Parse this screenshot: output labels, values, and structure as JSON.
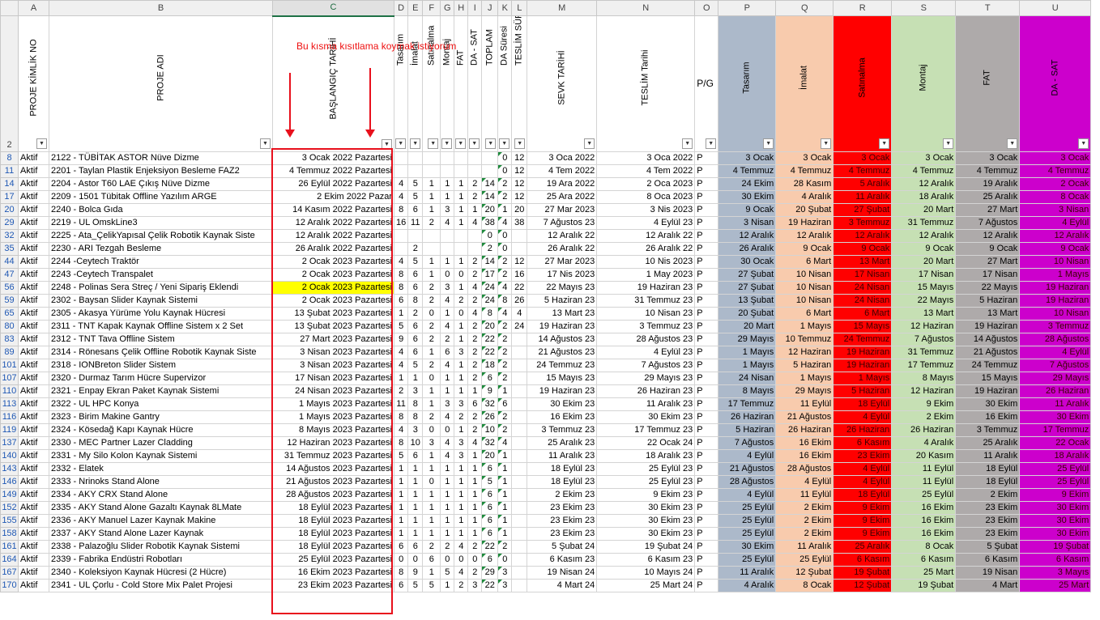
{
  "columns": [
    {
      "id": "rn",
      "letter": "",
      "w": 22
    },
    {
      "id": "A",
      "letter": "A",
      "w": 38
    },
    {
      "id": "B",
      "letter": "B",
      "w": 276
    },
    {
      "id": "C",
      "letter": "C",
      "w": 150
    },
    {
      "id": "D",
      "letter": "D",
      "w": 17
    },
    {
      "id": "E",
      "letter": "E",
      "w": 18
    },
    {
      "id": "F",
      "letter": "F",
      "w": 22
    },
    {
      "id": "G",
      "letter": "G",
      "w": 17
    },
    {
      "id": "H",
      "letter": "H",
      "w": 17
    },
    {
      "id": "I",
      "letter": "I",
      "w": 17
    },
    {
      "id": "J",
      "letter": "J",
      "w": 20
    },
    {
      "id": "K",
      "letter": "K",
      "w": 17
    },
    {
      "id": "L",
      "letter": "L",
      "w": 19
    },
    {
      "id": "M",
      "letter": "M",
      "w": 86
    },
    {
      "id": "N",
      "letter": "N",
      "w": 121
    },
    {
      "id": "O",
      "letter": "O",
      "w": 29
    },
    {
      "id": "P",
      "letter": "P",
      "w": 71
    },
    {
      "id": "Q",
      "letter": "Q",
      "w": 71
    },
    {
      "id": "R",
      "letter": "R",
      "w": 72
    },
    {
      "id": "S",
      "letter": "S",
      "w": 79
    },
    {
      "id": "T",
      "letter": "T",
      "w": 79
    },
    {
      "id": "U",
      "letter": "U",
      "w": 88
    }
  ],
  "header_row_number": "2",
  "headers": {
    "A": "PROJE KİMLİK NO",
    "B": "PROJE ADI",
    "C": "BAŞLANGIÇ TARİHİ",
    "D": "Tasarım",
    "E": "İmalat",
    "F": "Satınalma",
    "G": "Montaj",
    "H": "FAT",
    "I": "DA - SAT",
    "J": "TOPLAM",
    "K": "DA Süresi",
    "L": "TESLİM SÜRESİ",
    "M": "SEVK TARİHİ",
    "N": "TESLİM Tarihi",
    "O": "P/G",
    "P": "Tasarım",
    "Q": "İmalat",
    "R": "Satınalma",
    "S": "Montaj",
    "T": "FAT",
    "U": "DA - SAT"
  },
  "header_colors": {
    "P": "#acb9ca",
    "Q": "#f8cbad",
    "R": "#ff0000",
    "S": "#c6e0b4",
    "T": "#aeaaaa",
    "U": "#cc00cc"
  },
  "annotation": "Bu kısma kısıtlama koymak istiyorum",
  "rows": [
    {
      "n": "8",
      "A": "Aktif",
      "B": "2122 - TÜBİTAK ASTOR Nüve Dizme",
      "C": "3 Ocak 2022 Pazartesi",
      "D": "",
      "E": "",
      "F": "",
      "G": "",
      "H": "",
      "I": "",
      "J": "",
      "K": "0",
      "L": "12",
      "M": "3 Oca 2022",
      "N": "3 Oca 2022",
      "O": "P",
      "P": "3 Ocak",
      "Q": "3 Ocak",
      "R": "3 Ocak",
      "S": "3 Ocak",
      "T": "3 Ocak",
      "U": "3 Ocak"
    },
    {
      "n": "11",
      "A": "Aktif",
      "B": "2201 - Taylan Plastik Enjeksiyon Besleme FAZ2",
      "C": "4 Temmuz 2022 Pazartesi",
      "D": "",
      "E": "",
      "F": "",
      "G": "",
      "H": "",
      "I": "",
      "J": "",
      "K": "0",
      "L": "12",
      "M": "4 Tem 2022",
      "N": "4 Tem 2022",
      "O": "P",
      "P": "4 Temmuz",
      "Q": "4 Temmuz",
      "R": "4 Temmuz",
      "S": "4 Temmuz",
      "T": "4 Temmuz",
      "U": "4 Temmuz"
    },
    {
      "n": "14",
      "A": "Aktif",
      "B": "2204 - Astor T60 LAE Çıkış Nüve Dizme",
      "C": "26 Eylül 2022 Pazartesi",
      "D": "4",
      "E": "5",
      "F": "1",
      "G": "1",
      "H": "1",
      "I": "2",
      "J": "14",
      "K": "2",
      "L": "12",
      "M": "19 Ara 2022",
      "N": "2 Oca 2023",
      "O": "P",
      "P": "24 Ekim",
      "Q": "28 Kasım",
      "R": "5 Aralık",
      "S": "12 Aralık",
      "T": "19 Aralık",
      "U": "2 Ocak"
    },
    {
      "n": "17",
      "A": "Aktif",
      "B": "2209 - 1501 Tübitak Offline Yazılım ARGE",
      "C": "2 Ekim 2022 Pazar",
      "D": "4",
      "E": "5",
      "F": "1",
      "G": "1",
      "H": "1",
      "I": "2",
      "J": "14",
      "K": "2",
      "L": "12",
      "M": "25 Ara 2022",
      "N": "8 Oca 2023",
      "O": "P",
      "P": "30 Ekim",
      "Q": "4 Aralık",
      "R": "11 Aralık",
      "S": "18 Aralık",
      "T": "25 Aralık",
      "U": "8 Ocak"
    },
    {
      "n": "20",
      "A": "Aktif",
      "B": "2240 - Bolca Gıda",
      "C": "14 Kasım 2022 Pazartesi",
      "D": "8",
      "E": "6",
      "F": "1",
      "G": "3",
      "H": "1",
      "I": "1",
      "J": "20",
      "K": "1",
      "L": "20",
      "M": "27 Mar 2023",
      "N": "3 Nis 2023",
      "O": "P",
      "P": "9 Ocak",
      "Q": "20 Şubat",
      "R": "27 Şubat",
      "S": "20 Mart",
      "T": "27 Mart",
      "U": "3 Nisan"
    },
    {
      "n": "29",
      "A": "Aktif",
      "B": "2219  - UL OmskLine3",
      "C": "12 Aralık 2022 Pazartesi",
      "D": "16",
      "E": "11",
      "F": "2",
      "G": "4",
      "H": "1",
      "I": "4",
      "J": "38",
      "K": "4",
      "L": "38",
      "M": "7 Ağustos 23",
      "N": "4 Eylül 23",
      "O": "P",
      "P": "3 Nisan",
      "Q": "19 Haziran",
      "R": "3 Temmuz",
      "S": "31 Temmuz",
      "T": "7 Ağustos",
      "U": "4 Eylül"
    },
    {
      "n": "32",
      "A": "Aktif",
      "B": "2225 - Ata_ÇelikYapısal Çelik Robotik Kaynak Siste",
      "C": "12 Aralık 2022 Pazartesi",
      "D": "",
      "E": "",
      "F": "",
      "G": "",
      "H": "",
      "I": "",
      "J": "0",
      "K": "0",
      "L": "",
      "M": "12 Aralık 22",
      "N": "12 Aralık 22",
      "O": "P",
      "P": "12 Aralık",
      "Q": "12 Aralık",
      "R": "12 Aralık",
      "S": "12 Aralık",
      "T": "12 Aralık",
      "U": "12 Aralık"
    },
    {
      "n": "35",
      "A": "Aktif",
      "B": "2230 - ARI Tezgah Besleme",
      "C": "26 Aralık 2022 Pazartesi",
      "D": "",
      "E": "2",
      "F": "",
      "G": "",
      "H": "",
      "I": "",
      "J": "2",
      "K": "0",
      "L": "",
      "M": "26 Aralık 22",
      "N": "26 Aralık 22",
      "O": "P",
      "P": "26 Aralık",
      "Q": "9 Ocak",
      "R": "9 Ocak",
      "S": "9 Ocak",
      "T": "9 Ocak",
      "U": "9 Ocak"
    },
    {
      "n": "44",
      "A": "Aktif",
      "B": "2244 -Ceytech Traktör",
      "C": "2 Ocak 2023 Pazartesi",
      "D": "4",
      "E": "5",
      "F": "1",
      "G": "1",
      "H": "1",
      "I": "2",
      "J": "14",
      "K": "2",
      "L": "12",
      "M": "27 Mar 2023",
      "N": "10 Nis 2023",
      "O": "P",
      "P": "30 Ocak",
      "Q": "6 Mart",
      "R": "13 Mart",
      "S": "20 Mart",
      "T": "27 Mart",
      "U": "10 Nisan"
    },
    {
      "n": "47",
      "A": "Aktif",
      "B": "2243 -Ceytech Transpalet",
      "C": "2 Ocak 2023 Pazartesi",
      "D": "8",
      "E": "6",
      "F": "1",
      "G": "0",
      "H": "0",
      "I": "2",
      "J": "17",
      "K": "2",
      "L": "16",
      "M": "17 Nis 2023",
      "N": "1 May 2023",
      "O": "P",
      "P": "27 Şubat",
      "Q": "10 Nisan",
      "R": "17 Nisan",
      "S": "17 Nisan",
      "T": "17 Nisan",
      "U": "1 Mayıs"
    },
    {
      "n": "56",
      "A": "Aktif",
      "B": "2248 - Polinas Sera Streç / Yeni Sipariş Eklendi",
      "C": "2 Ocak 2023 Pazartesi",
      "CY": true,
      "D": "8",
      "E": "6",
      "F": "2",
      "G": "3",
      "H": "1",
      "I": "4",
      "J": "24",
      "K": "4",
      "L": "22",
      "M": "22 Mayıs 23",
      "N": "19 Haziran 23",
      "O": "P",
      "P": "27 Şubat",
      "Q": "10 Nisan",
      "R": "24 Nisan",
      "S": "15 Mayıs",
      "T": "22 Mayıs",
      "U": "19 Haziran"
    },
    {
      "n": "59",
      "A": "Aktif",
      "B": "2302 - Baysan Slider Kaynak Sistemi",
      "C": "2 Ocak 2023 Pazartesi",
      "D": "6",
      "E": "8",
      "F": "2",
      "G": "4",
      "H": "2",
      "I": "2",
      "J": "24",
      "K": "8",
      "L": "26",
      "M": "5 Haziran 23",
      "N": "31 Temmuz 23",
      "O": "P",
      "P": "13 Şubat",
      "Q": "10 Nisan",
      "R": "24 Nisan",
      "S": "22 Mayıs",
      "T": "5 Haziran",
      "U": "19 Haziran"
    },
    {
      "n": "65",
      "A": "Aktif",
      "B": "2305 - Akasya Yürüme Yolu Kaynak Hücresi",
      "C": "13 Şubat 2023 Pazartesi",
      "D": "1",
      "E": "2",
      "F": "0",
      "G": "1",
      "H": "0",
      "I": "4",
      "J": "8",
      "K": "4",
      "L": "4",
      "M": "13 Mart 23",
      "N": "10 Nisan 23",
      "O": "P",
      "P": "20 Şubat",
      "Q": "6 Mart",
      "R": "6 Mart",
      "S": "13 Mart",
      "T": "13 Mart",
      "U": "10 Nisan"
    },
    {
      "n": "80",
      "A": "Aktif",
      "B": "2311 - TNT Kapak Kaynak Offline Sistem x 2 Set",
      "C": "13 Şubat 2023 Pazartesi",
      "D": "5",
      "E": "6",
      "F": "2",
      "G": "4",
      "H": "1",
      "I": "2",
      "J": "20",
      "K": "2",
      "L": "24",
      "M": "19 Haziran 23",
      "N": "3 Temmuz 23",
      "O": "P",
      "P": "20 Mart",
      "Q": "1 Mayıs",
      "R": "15 Mayıs",
      "S": "12 Haziran",
      "T": "19 Haziran",
      "U": "3 Temmuz"
    },
    {
      "n": "83",
      "A": "Aktif",
      "B": "2312 - TNT Tava Offline Sistem",
      "C": "27 Mart 2023 Pazartesi",
      "D": "9",
      "E": "6",
      "F": "2",
      "G": "2",
      "H": "1",
      "I": "2",
      "J": "22",
      "K": "2",
      "L": "",
      "M": "14 Ağustos 23",
      "N": "28 Ağustos 23",
      "O": "P",
      "P": "29 Mayıs",
      "Q": "10 Temmuz",
      "R": "24 Temmuz",
      "S": "7 Ağustos",
      "T": "14 Ağustos",
      "U": "28 Ağustos"
    },
    {
      "n": "89",
      "A": "Aktif",
      "B": "2314 - Rönesans Çelik Offline Robotik Kaynak Siste",
      "C": "3 Nisan 2023 Pazartesi",
      "D": "4",
      "E": "6",
      "F": "1",
      "G": "6",
      "H": "3",
      "I": "2",
      "J": "22",
      "K": "2",
      "L": "",
      "M": "21 Ağustos 23",
      "N": "4 Eylül 23",
      "O": "P",
      "P": "1 Mayıs",
      "Q": "12 Haziran",
      "R": "19 Haziran",
      "S": "31 Temmuz",
      "T": "21 Ağustos",
      "U": "4 Eylül"
    },
    {
      "n": "101",
      "A": "Aktif",
      "B": "2318 - IONBreton Slider Sistem",
      "C": "3 Nisan 2023 Pazartesi",
      "D": "4",
      "E": "5",
      "F": "2",
      "G": "4",
      "H": "1",
      "I": "2",
      "J": "18",
      "K": "2",
      "L": "",
      "M": "24 Temmuz 23",
      "N": "7 Ağustos 23",
      "O": "P",
      "P": "1 Mayıs",
      "Q": "5 Haziran",
      "R": "19 Haziran",
      "S": "17 Temmuz",
      "T": "24 Temmuz",
      "U": "7 Ağustos"
    },
    {
      "n": "107",
      "A": "Aktif",
      "B": "2320 - Durmaz Tarım Hücre Supervizor",
      "C": "17 Nisan 2023 Pazartesi",
      "D": "1",
      "E": "1",
      "F": "0",
      "G": "1",
      "H": "1",
      "I": "2",
      "J": "6",
      "K": "2",
      "L": "",
      "M": "15 Mayıs 23",
      "N": "29 Mayıs 23",
      "O": "P",
      "P": "24 Nisan",
      "Q": "1 Mayıs",
      "R": "1 Mayıs",
      "S": "8 Mayıs",
      "T": "15 Mayıs",
      "U": "29 Mayıs"
    },
    {
      "n": "110",
      "A": "Aktif",
      "B": "2321 - Enpay Ekran Paket Kaynak Sistemi",
      "C": "24 Nisan 2023 Pazartesi",
      "D": "2",
      "E": "3",
      "F": "1",
      "G": "1",
      "H": "1",
      "I": "1",
      "J": "9",
      "K": "1",
      "L": "",
      "M": "19 Haziran 23",
      "N": "26 Haziran 23",
      "O": "P",
      "P": "8 Mayıs",
      "Q": "29 Mayıs",
      "R": "5 Haziran",
      "S": "12 Haziran",
      "T": "19 Haziran",
      "U": "26 Haziran"
    },
    {
      "n": "113",
      "A": "Aktif",
      "B": "2322 - UL HPC Konya",
      "C": "1 Mayıs 2023 Pazartesi",
      "D": "11",
      "E": "8",
      "F": "1",
      "G": "3",
      "H": "3",
      "I": "6",
      "J": "32",
      "K": "6",
      "L": "",
      "M": "30 Ekim 23",
      "N": "11 Aralık 23",
      "O": "P",
      "P": "17 Temmuz",
      "Q": "11 Eylül",
      "R": "18 Eylül",
      "S": "9 Ekim",
      "T": "30 Ekim",
      "U": "11 Aralık"
    },
    {
      "n": "116",
      "A": "Aktif",
      "B": "2323 - Birim Makine Gantry",
      "C": "1 Mayıs 2023 Pazartesi",
      "D": "8",
      "E": "8",
      "F": "2",
      "G": "4",
      "H": "2",
      "I": "2",
      "J": "26",
      "K": "2",
      "L": "",
      "M": "16 Ekim 23",
      "N": "30 Ekim 23",
      "O": "P",
      "P": "26 Haziran",
      "Q": "21 Ağustos",
      "R": "4 Eylül",
      "S": "2 Ekim",
      "T": "16 Ekim",
      "U": "30 Ekim"
    },
    {
      "n": "119",
      "A": "Aktif",
      "B": "2324 - Kösedağ Kapı Kaynak Hücre",
      "C": "8 Mayıs 2023 Pazartesi",
      "D": "4",
      "E": "3",
      "F": "0",
      "G": "0",
      "H": "1",
      "I": "2",
      "J": "10",
      "K": "2",
      "L": "",
      "M": "3 Temmuz 23",
      "N": "17 Temmuz 23",
      "O": "P",
      "P": "5 Haziran",
      "Q": "26 Haziran",
      "R": "26 Haziran",
      "S": "26 Haziran",
      "T": "3 Temmuz",
      "U": "17 Temmuz"
    },
    {
      "n": "137",
      "A": "Aktif",
      "B": "2330 - MEC Partner Lazer Cladding",
      "C": "12 Haziran 2023 Pazartesi",
      "D": "8",
      "E": "10",
      "F": "3",
      "G": "4",
      "H": "3",
      "I": "4",
      "J": "32",
      "K": "4",
      "L": "",
      "M": "25 Aralık 23",
      "N": "22 Ocak 24",
      "O": "P",
      "P": "7 Ağustos",
      "Q": "16 Ekim",
      "R": "6 Kasım",
      "S": "4 Aralık",
      "T": "25 Aralık",
      "U": "22 Ocak"
    },
    {
      "n": "140",
      "A": "Aktif",
      "B": "2331 - My Silo Kolon Kaynak Sistemi",
      "C": "31 Temmuz 2023 Pazartesi",
      "D": "5",
      "E": "6",
      "F": "1",
      "G": "4",
      "H": "3",
      "I": "1",
      "J": "20",
      "K": "1",
      "L": "",
      "M": "11 Aralık 23",
      "N": "18 Aralık 23",
      "O": "P",
      "P": "4 Eylül",
      "Q": "16 Ekim",
      "R": "23 Ekim",
      "S": "20 Kasım",
      "T": "11 Aralık",
      "U": "18 Aralık"
    },
    {
      "n": "143",
      "A": "Aktif",
      "B": "2332 - Elatek",
      "C": "14 Ağustos 2023 Pazartesi",
      "D": "1",
      "E": "1",
      "F": "1",
      "G": "1",
      "H": "1",
      "I": "1",
      "J": "6",
      "K": "1",
      "L": "",
      "M": "18 Eylül 23",
      "N": "25 Eylül 23",
      "O": "P",
      "P": "21 Ağustos",
      "Q": "28 Ağustos",
      "R": "4 Eylül",
      "S": "11 Eylül",
      "T": "18 Eylül",
      "U": "25 Eylül"
    },
    {
      "n": "146",
      "A": "Aktif",
      "B": "2333 - Nrinoks Stand Alone",
      "C": "21 Ağustos 2023 Pazartesi",
      "D": "1",
      "E": "1",
      "F": "0",
      "G": "1",
      "H": "1",
      "I": "1",
      "J": "5",
      "K": "1",
      "L": "",
      "M": "18 Eylül 23",
      "N": "25 Eylül 23",
      "O": "P",
      "P": "28 Ağustos",
      "Q": "4 Eylül",
      "R": "4 Eylül",
      "S": "11 Eylül",
      "T": "18 Eylül",
      "U": "25 Eylül"
    },
    {
      "n": "149",
      "A": "Aktif",
      "B": "2334 - AKY CRX Stand Alone",
      "C": "28 Ağustos 2023 Pazartesi",
      "D": "1",
      "E": "1",
      "F": "1",
      "G": "1",
      "H": "1",
      "I": "1",
      "J": "6",
      "K": "1",
      "L": "",
      "M": "2 Ekim 23",
      "N": "9 Ekim 23",
      "O": "P",
      "P": "4 Eylül",
      "Q": "11 Eylül",
      "R": "18 Eylül",
      "S": "25 Eylül",
      "T": "2 Ekim",
      "U": "9 Ekim"
    },
    {
      "n": "152",
      "A": "Aktif",
      "B": "2335 - AKY Stand Alone Gazaltı Kaynak 8LMate",
      "C": "18 Eylül 2023 Pazartesi",
      "D": "1",
      "E": "1",
      "F": "1",
      "G": "1",
      "H": "1",
      "I": "1",
      "J": "6",
      "K": "1",
      "L": "",
      "M": "23 Ekim 23",
      "N": "30 Ekim 23",
      "O": "P",
      "P": "25 Eylül",
      "Q": "2 Ekim",
      "R": "9 Ekim",
      "S": "16 Ekim",
      "T": "23 Ekim",
      "U": "30 Ekim"
    },
    {
      "n": "155",
      "A": "Aktif",
      "B": "2336 - AKY Manuel Lazer Kaynak Makine",
      "C": "18 Eylül 2023 Pazartesi",
      "D": "1",
      "E": "1",
      "F": "1",
      "G": "1",
      "H": "1",
      "I": "1",
      "J": "6",
      "K": "1",
      "L": "",
      "M": "23 Ekim 23",
      "N": "30 Ekim 23",
      "O": "P",
      "P": "25 Eylül",
      "Q": "2 Ekim",
      "R": "9 Ekim",
      "S": "16 Ekim",
      "T": "23 Ekim",
      "U": "30 Ekim"
    },
    {
      "n": "158",
      "A": "Aktif",
      "B": "2337 - AKY Stand Alone Lazer Kaynak",
      "C": "18 Eylül 2023 Pazartesi",
      "D": "1",
      "E": "1",
      "F": "1",
      "G": "1",
      "H": "1",
      "I": "1",
      "J": "6",
      "K": "1",
      "L": "",
      "M": "23 Ekim 23",
      "N": "30 Ekim 23",
      "O": "P",
      "P": "25 Eylül",
      "Q": "2 Ekim",
      "R": "9 Ekim",
      "S": "16 Ekim",
      "T": "23 Ekim",
      "U": "30 Ekim"
    },
    {
      "n": "161",
      "A": "Aktif",
      "B": "2338 - Palazoğlu Slider Robotik Kaynak Sistemi",
      "C": "18 Eylül 2023 Pazartesi",
      "D": "6",
      "E": "6",
      "F": "2",
      "G": "2",
      "H": "4",
      "I": "2",
      "J": "22",
      "K": "2",
      "L": "",
      "M": "5 Şubat 24",
      "N": "19 Şubat 24",
      "O": "P",
      "P": "30 Ekim",
      "Q": "11 Aralık",
      "R": "25 Aralık",
      "S": "8 Ocak",
      "T": "5 Şubat",
      "U": "19 Şubat"
    },
    {
      "n": "164",
      "A": "Aktif",
      "B": "2339 - Fabrika Endüstri Robotları",
      "C": "25 Eylül 2023 Pazartesi",
      "D": "0",
      "E": "0",
      "F": "6",
      "G": "0",
      "H": "0",
      "I": "0",
      "J": "6",
      "K": "0",
      "L": "",
      "M": "6 Kasım 23",
      "N": "6 Kasım 23",
      "O": "P",
      "P": "25 Eylül",
      "Q": "25 Eylül",
      "R": "6 Kasım",
      "S": "6 Kasım",
      "T": "6 Kasım",
      "U": "6 Kasım"
    },
    {
      "n": "167",
      "A": "Aktif",
      "B": "2340 - Koleksiyon Kaynak Hücresi (2 Hücre)",
      "C": "16 Ekim 2023 Pazartesi",
      "D": "8",
      "E": "9",
      "F": "1",
      "G": "5",
      "H": "4",
      "I": "2",
      "J": "29",
      "K": "3",
      "L": "",
      "M": "19 Nisan 24",
      "N": "10 Mayıs 24",
      "O": "P",
      "P": "11 Aralık",
      "Q": "12 Şubat",
      "R": "19 Şubat",
      "S": "25 Mart",
      "T": "19 Nisan",
      "U": "3 Mayıs"
    },
    {
      "n": "170",
      "A": "Aktif",
      "B": "2341 - UL Çorlu - Cold Store Mix Palet Projesi",
      "C": "23 Ekim 2023 Pazartesi",
      "D": "6",
      "E": "5",
      "F": "5",
      "G": "1",
      "H": "2",
      "I": "3",
      "J": "22",
      "K": "3",
      "L": "",
      "M": "4 Mart 24",
      "N": "25 Mart 24",
      "O": "P",
      "P": "4 Aralık",
      "Q": "8 Ocak",
      "R": "12 Şubat",
      "S": "19 Şubat",
      "T": "4 Mart",
      "U": "25 Mart"
    }
  ]
}
